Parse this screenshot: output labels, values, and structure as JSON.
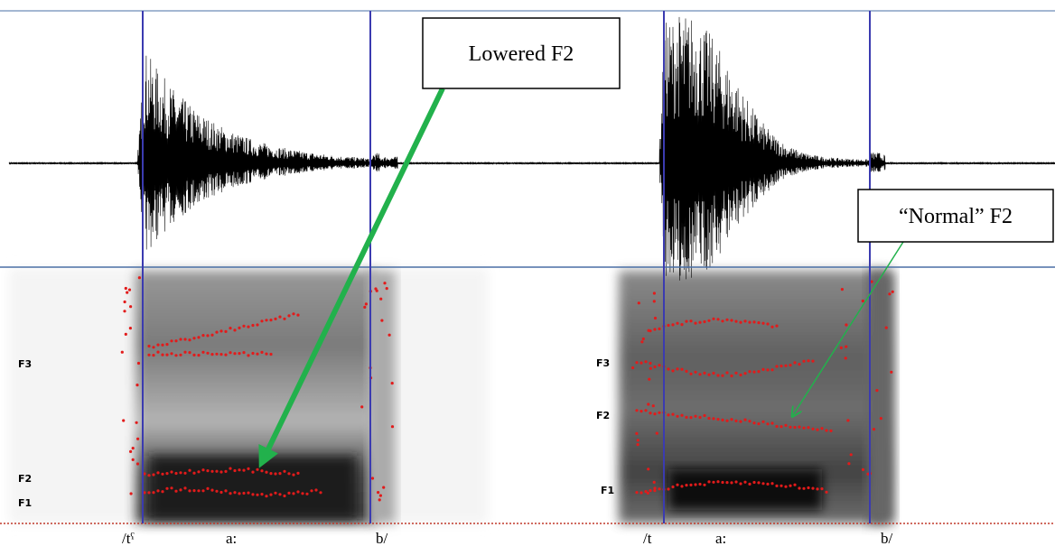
{
  "callouts": [
    {
      "label": "Lowered F2"
    },
    {
      "label": "“Normal” F2"
    }
  ],
  "panels": [
    {
      "formant_labels": [
        "F3",
        "F2",
        "F1"
      ],
      "segment_labels": [
        "/tˤ",
        "a:",
        "b/"
      ]
    },
    {
      "formant_labels": [
        "F3",
        "F2",
        "F1"
      ],
      "segment_labels": [
        "/t",
        "a:",
        "b/"
      ]
    }
  ]
}
